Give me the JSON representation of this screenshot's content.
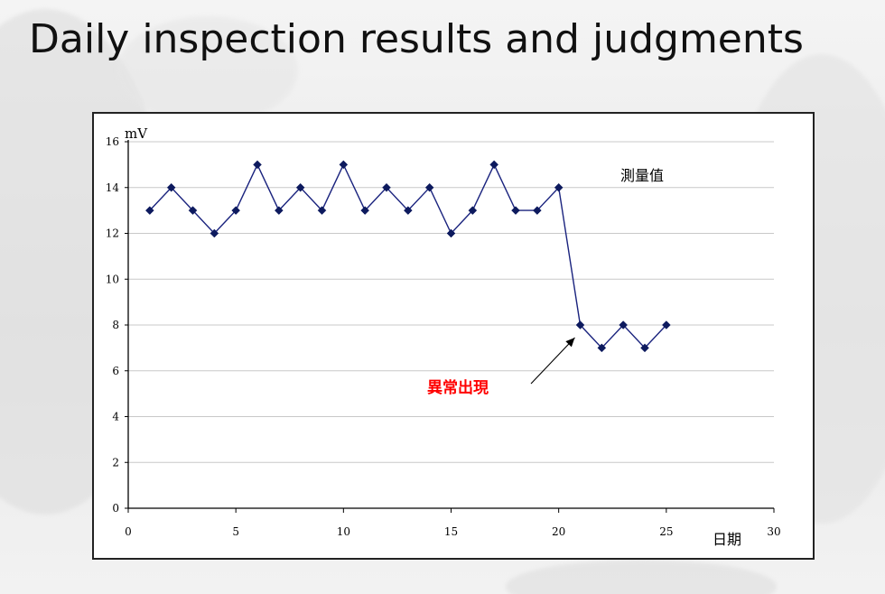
{
  "slide": {
    "title": "Daily inspection results and judgments"
  },
  "chart_data": {
    "type": "line",
    "title": "",
    "xlabel": "日期",
    "ylabel": "mV",
    "xlim": [
      0,
      30
    ],
    "ylim": [
      0,
      16
    ],
    "x_ticks": [
      0,
      5,
      10,
      15,
      20,
      25,
      30
    ],
    "y_ticks": [
      0,
      2,
      4,
      6,
      8,
      10,
      12,
      14,
      16
    ],
    "grid": "horizontal",
    "legend_position": "top-right",
    "series": [
      {
        "name": "測量值",
        "color": "#1a237e",
        "marker": "diamond",
        "x": [
          1,
          2,
          3,
          4,
          5,
          6,
          7,
          8,
          9,
          10,
          11,
          12,
          13,
          14,
          15,
          16,
          17,
          18,
          19,
          20,
          21,
          22,
          23,
          24,
          25
        ],
        "values": [
          13,
          14,
          13,
          12,
          13,
          15,
          13,
          14,
          13,
          15,
          13,
          14,
          13,
          14,
          12,
          13,
          15,
          13,
          13,
          14,
          8,
          7,
          8,
          7,
          8
        ]
      }
    ],
    "annotations": [
      {
        "text": "異常出現",
        "color": "#ff0000",
        "points_to": {
          "x": 21,
          "y": 8
        }
      }
    ]
  }
}
